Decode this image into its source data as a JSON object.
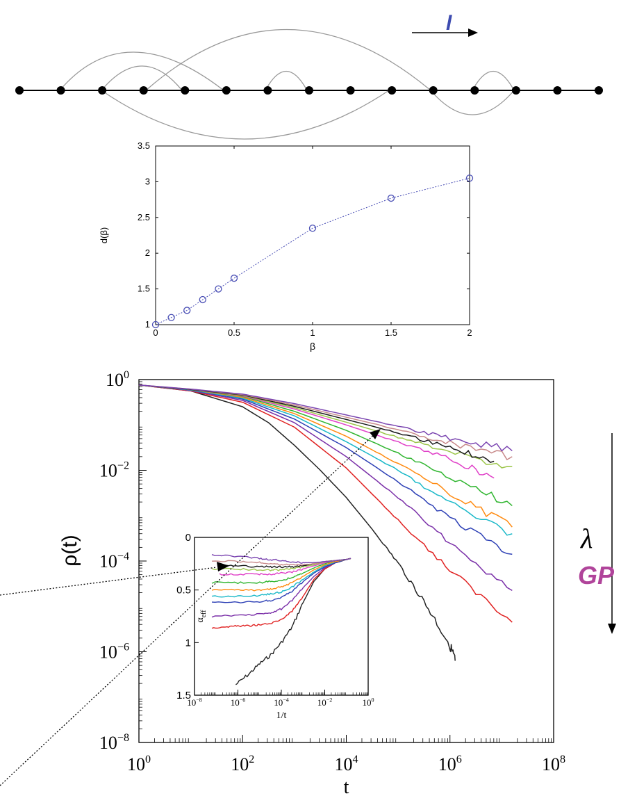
{
  "network": {
    "arrow_label": "l",
    "node_count": 15
  },
  "side_annotations": {
    "lambda_symbol": "λ",
    "gp_label": "GP",
    "gp_color": "#b0449a",
    "arrow_label_color": "#3d4bb0"
  },
  "chart_data": [
    {
      "type": "line",
      "id": "dimension-plot",
      "xlabel": "β",
      "ylabel": "d(β)",
      "xlim": [
        0,
        2
      ],
      "ylim": [
        1,
        3.5
      ],
      "x_ticks": [
        "0",
        "0.5",
        "1",
        "1.5",
        "2"
      ],
      "y_ticks": [
        "1",
        "1.5",
        "2",
        "2.5",
        "3",
        "3.5"
      ],
      "x_tick_values": [
        0,
        0.5,
        1,
        1.5,
        2
      ],
      "y_tick_values": [
        1,
        1.5,
        2,
        2.5,
        3,
        3.5
      ],
      "color": "#4a4fb5",
      "series": [
        {
          "x": [
            0,
            0.1,
            0.2,
            0.3,
            0.4,
            0.5,
            1.0,
            1.5,
            2.0
          ],
          "y": [
            1.0,
            1.1,
            1.2,
            1.35,
            1.5,
            1.65,
            2.35,
            2.77,
            3.05
          ]
        }
      ]
    },
    {
      "type": "line",
      "id": "density-decay",
      "xlabel": "t",
      "ylabel": "ρ(t)",
      "x_scale": "log",
      "y_scale": "log",
      "xlim": [
        1,
        100000000
      ],
      "ylim": [
        1e-08,
        1
      ],
      "x_ticks": [
        "10^0",
        "10^2",
        "10^4",
        "10^6",
        "10^8"
      ],
      "y_ticks": [
        "10^0",
        "10^-2",
        "10^-4",
        "10^-6",
        "10^-8"
      ],
      "x_tick_exp": [
        0,
        2,
        4,
        6,
        8
      ],
      "y_tick_exp": [
        0,
        -2,
        -4,
        -6,
        -8
      ],
      "series": [
        {
          "color": "#222222",
          "x_log": [
            0,
            1,
            2,
            2.5,
            3,
            3.5,
            4,
            4.5,
            5,
            5.5,
            6,
            6.1
          ],
          "y_log": [
            -0.12,
            -0.25,
            -0.6,
            -0.95,
            -1.45,
            -2.0,
            -2.6,
            -3.3,
            -4.05,
            -4.9,
            -5.85,
            -6.2
          ]
        },
        {
          "color": "#e02020",
          "x_log": [
            0,
            1,
            2,
            3,
            4,
            5,
            6,
            7.2
          ],
          "y_log": [
            -0.12,
            -0.25,
            -0.5,
            -1.05,
            -1.95,
            -3.1,
            -4.2,
            -5.35
          ]
        },
        {
          "color": "#7a2fa8",
          "x_log": [
            0,
            1,
            2,
            3,
            4,
            5,
            6,
            7.2
          ],
          "y_log": [
            -0.12,
            -0.24,
            -0.46,
            -0.95,
            -1.7,
            -2.6,
            -3.6,
            -4.65
          ]
        },
        {
          "color": "#2c3fb5",
          "x_log": [
            0,
            1,
            2,
            3,
            4,
            5,
            6,
            7.2
          ],
          "y_log": [
            -0.12,
            -0.23,
            -0.43,
            -0.87,
            -1.5,
            -2.25,
            -3.05,
            -3.85
          ]
        },
        {
          "color": "#18b8c8",
          "x_log": [
            0,
            1,
            2,
            3,
            4,
            5,
            6,
            7.2
          ],
          "y_log": [
            -0.12,
            -0.23,
            -0.41,
            -0.8,
            -1.37,
            -2.0,
            -2.72,
            -3.4
          ]
        },
        {
          "color": "#ff8a10",
          "x_log": [
            0,
            1,
            2,
            3,
            4,
            5,
            6,
            7.2
          ],
          "y_log": [
            -0.12,
            -0.22,
            -0.39,
            -0.75,
            -1.25,
            -1.85,
            -2.5,
            -3.25
          ]
        },
        {
          "color": "#2fb52f",
          "x_log": [
            0,
            1,
            2,
            3,
            4,
            5,
            6,
            7.2
          ],
          "y_log": [
            -0.12,
            -0.22,
            -0.37,
            -0.7,
            -1.12,
            -1.62,
            -2.15,
            -2.78
          ]
        },
        {
          "color": "#e040c8",
          "x_log": [
            0,
            1,
            2,
            3,
            4,
            5,
            6,
            6.85
          ],
          "y_log": [
            -0.12,
            -0.22,
            -0.36,
            -0.65,
            -1.0,
            -1.38,
            -1.75,
            -2.17
          ]
        },
        {
          "color": "#9cc64a",
          "x_log": [
            0,
            1,
            2,
            3,
            4,
            5,
            6,
            7.2
          ],
          "y_log": [
            -0.12,
            -0.22,
            -0.35,
            -0.62,
            -0.94,
            -1.27,
            -1.6,
            -1.92
          ]
        },
        {
          "color": "#1a1a1a",
          "x_log": [
            0,
            1,
            2,
            3,
            4,
            5,
            6,
            6.85
          ],
          "y_log": [
            -0.12,
            -0.22,
            -0.34,
            -0.59,
            -0.88,
            -1.17,
            -1.5,
            -1.8
          ]
        },
        {
          "color": "#c88a8a",
          "x_log": [
            0,
            1,
            2,
            3,
            4,
            5,
            6,
            7.2
          ],
          "y_log": [
            -0.12,
            -0.21,
            -0.33,
            -0.56,
            -0.83,
            -1.1,
            -1.4,
            -1.7
          ]
        },
        {
          "color": "#7a44b0",
          "x_log": [
            0,
            1,
            2,
            3,
            4,
            5,
            6,
            7.2
          ],
          "y_log": [
            -0.12,
            -0.21,
            -0.32,
            -0.53,
            -0.78,
            -1.03,
            -1.3,
            -1.57
          ]
        }
      ]
    },
    {
      "type": "line",
      "id": "effective-exponent-inset",
      "xlabel": "1/t",
      "ylabel": "α_eff",
      "x_scale": "log",
      "xlim": [
        1e-08,
        1
      ],
      "ylim": [
        1.5,
        0
      ],
      "x_ticks": [
        "10^-8",
        "10^-6",
        "10^-4",
        "10^-2",
        "10^0"
      ],
      "y_ticks": [
        "0",
        "0.5",
        "1",
        "1.5"
      ],
      "x_tick_exp": [
        -8,
        -6,
        -4,
        -2,
        0
      ],
      "y_tick_values": [
        0,
        0.5,
        1,
        1.5
      ],
      "series": [
        {
          "color": "#222222",
          "x_log": [
            -6.1,
            -5.5,
            -5,
            -4.5,
            -4,
            -3.5,
            -3,
            -2.5,
            -2,
            -1.5,
            -1,
            -0.8
          ],
          "y_log": [
            1.4,
            1.3,
            1.2,
            1.12,
            1.0,
            0.85,
            0.62,
            0.42,
            0.3,
            0.24,
            0.21,
            0.2
          ]
        },
        {
          "color": "#e02020",
          "x_log": [
            -7.2,
            -6.5,
            -6,
            -5.5,
            -5,
            -4.5,
            -4,
            -3.5,
            -3,
            -2.5,
            -2,
            -1.5,
            -1,
            -0.8
          ],
          "y_log": [
            0.86,
            0.85,
            0.84,
            0.84,
            0.83,
            0.82,
            0.78,
            0.7,
            0.56,
            0.4,
            0.3,
            0.24,
            0.21,
            0.2
          ]
        },
        {
          "color": "#7a2fa8",
          "x_log": [
            -7.2,
            -6,
            -5,
            -4.5,
            -4,
            -3.5,
            -3,
            -2.5,
            -2,
            -1.5,
            -1,
            -0.8
          ],
          "y_log": [
            0.75,
            0.74,
            0.73,
            0.72,
            0.68,
            0.6,
            0.48,
            0.37,
            0.29,
            0.24,
            0.21,
            0.2
          ]
        },
        {
          "color": "#2c3fb5",
          "x_log": [
            -7.2,
            -6,
            -5,
            -4.5,
            -4,
            -3.5,
            -3,
            -2.5,
            -2,
            -1.5,
            -1,
            -0.8
          ],
          "y_log": [
            0.62,
            0.62,
            0.61,
            0.6,
            0.57,
            0.51,
            0.42,
            0.34,
            0.28,
            0.24,
            0.21,
            0.2
          ]
        },
        {
          "color": "#18b8c8",
          "x_log": [
            -7.2,
            -6,
            -5,
            -4.5,
            -4,
            -3.5,
            -3,
            -2.5,
            -2,
            -1.5,
            -1,
            -0.8
          ],
          "y_log": [
            0.56,
            0.56,
            0.55,
            0.54,
            0.52,
            0.47,
            0.4,
            0.33,
            0.27,
            0.23,
            0.21,
            0.2
          ]
        },
        {
          "color": "#ff8a10",
          "x_log": [
            -7.2,
            -6,
            -5,
            -4.5,
            -4,
            -3.5,
            -3,
            -2.5,
            -2,
            -1.5,
            -1,
            -0.8
          ],
          "y_log": [
            0.5,
            0.5,
            0.5,
            0.49,
            0.47,
            0.43,
            0.37,
            0.31,
            0.26,
            0.23,
            0.21,
            0.2
          ]
        },
        {
          "color": "#2fb52f",
          "x_log": [
            -7.2,
            -6,
            -5,
            -4.5,
            -4,
            -3.5,
            -3,
            -2.5,
            -2,
            -1.5,
            -1,
            -0.8
          ],
          "y_log": [
            0.43,
            0.43,
            0.43,
            0.42,
            0.41,
            0.38,
            0.34,
            0.29,
            0.25,
            0.22,
            0.21,
            0.2
          ]
        },
        {
          "color": "#e040c8",
          "x_log": [
            -6.85,
            -6,
            -5,
            -4.5,
            -4,
            -3.5,
            -3,
            -2.5,
            -2,
            -1.5,
            -1,
            -0.8
          ],
          "y_log": [
            0.35,
            0.35,
            0.35,
            0.35,
            0.34,
            0.33,
            0.3,
            0.27,
            0.24,
            0.22,
            0.21,
            0.2
          ]
        },
        {
          "color": "#9cc64a",
          "x_log": [
            -7.2,
            -6,
            -5,
            -4.5,
            -4,
            -3.5,
            -3,
            -2.5,
            -2,
            -1.5,
            -1,
            -0.8
          ],
          "y_log": [
            0.3,
            0.3,
            0.31,
            0.31,
            0.31,
            0.3,
            0.28,
            0.26,
            0.23,
            0.22,
            0.21,
            0.2
          ]
        },
        {
          "color": "#1a1a1a",
          "x_log": [
            -6.85,
            -6,
            -5,
            -4.5,
            -4,
            -3.5,
            -3,
            -2.5,
            -2,
            -1.5,
            -1,
            -0.8
          ],
          "y_log": [
            0.27,
            0.27,
            0.28,
            0.28,
            0.28,
            0.28,
            0.27,
            0.25,
            0.23,
            0.22,
            0.21,
            0.2
          ]
        },
        {
          "color": "#c88a8a",
          "x_log": [
            -7.2,
            -6,
            -5,
            -4.5,
            -4,
            -3.5,
            -3,
            -2.5,
            -2,
            -1.5,
            -1,
            -0.8
          ],
          "y_log": [
            0.22,
            0.23,
            0.24,
            0.25,
            0.26,
            0.26,
            0.26,
            0.25,
            0.23,
            0.22,
            0.21,
            0.2
          ]
        },
        {
          "color": "#7a44b0",
          "x_log": [
            -7.2,
            -6,
            -5,
            -4.5,
            -4,
            -3.5,
            -3,
            -2.5,
            -2,
            -1.5,
            -1,
            -0.8
          ],
          "y_log": [
            0.17,
            0.18,
            0.2,
            0.21,
            0.22,
            0.23,
            0.24,
            0.24,
            0.23,
            0.22,
            0.21,
            0.2
          ]
        }
      ]
    }
  ]
}
